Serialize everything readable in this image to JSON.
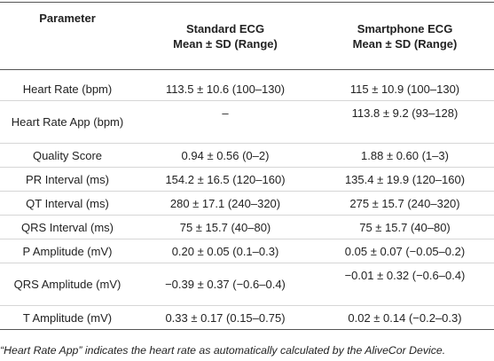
{
  "table": {
    "headers": {
      "parameter": "Parameter",
      "standard_line1": "Standard ECG",
      "standard_line2": "Mean ± SD (Range)",
      "smartphone_line1": "Smartphone ECG",
      "smartphone_line2": "Mean ± SD (Range)"
    },
    "rows": [
      {
        "parameter": "Heart Rate (bpm)",
        "standard": "113.5 ± 10.6 (100–130)",
        "smartphone": "115 ± 10.9 (100–130)"
      },
      {
        "parameter": "Heart Rate App (bpm)",
        "standard": "–",
        "smartphone": "113.8 ± 9.2 (93–128)"
      },
      {
        "parameter": "Quality Score",
        "standard": "0.94 ± 0.56 (0–2)",
        "smartphone": "1.88 ± 0.60 (1–3)"
      },
      {
        "parameter": "PR Interval (ms)",
        "standard": "154.2 ± 16.5 (120–160)",
        "smartphone": "135.4 ± 19.9 (120–160)"
      },
      {
        "parameter": "QT Interval (ms)",
        "standard": "280 ± 17.1 (240–320)",
        "smartphone": "275 ± 15.7 (240–320)"
      },
      {
        "parameter": "QRS Interval (ms)",
        "standard": "75 ± 15.7 (40–80)",
        "smartphone": "75 ± 15.7 (40–80)"
      },
      {
        "parameter": "P Amplitude (mV)",
        "standard": "0.20 ± 0.05 (0.1–0.3)",
        "smartphone": "0.05 ± 0.07 (−0.05–0.2)"
      },
      {
        "parameter": "QRS Amplitude (mV)",
        "standard": "−0.39 ± 0.37 (−0.6–0.4)",
        "smartphone": "−0.01 ± 0.32 (−0.6–0.4)"
      },
      {
        "parameter": "T Amplitude (mV)",
        "standard": "0.33 ± 0.17 (0.15–0.75)",
        "smartphone": "0.02 ± 0.14 (−0.2–0.3)"
      }
    ]
  },
  "footnote": "“Heart Rate App” indicates the heart rate as automatically calculated by the AliveCor Device."
}
